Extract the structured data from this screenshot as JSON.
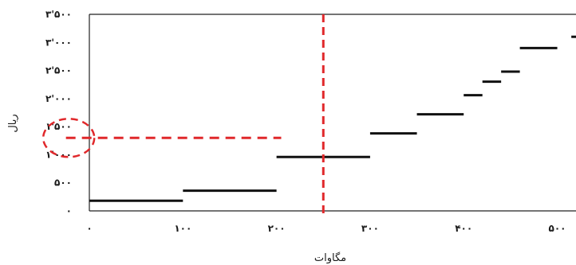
{
  "chart_data": {
    "type": "line",
    "xlabel": "مگاوات",
    "ylabel": "ریال",
    "xlim": [
      0,
      520
    ],
    "ylim": [
      0,
      3500
    ],
    "x_ticks": [
      {
        "value": 0,
        "label": "۰"
      },
      {
        "value": 100,
        "label": "۱۰۰"
      },
      {
        "value": 200,
        "label": "۲۰۰"
      },
      {
        "value": 300,
        "label": "۳۰۰"
      },
      {
        "value": 400,
        "label": "۴۰۰"
      },
      {
        "value": 500,
        "label": "۵۰۰"
      }
    ],
    "y_ticks": [
      {
        "value": 0,
        "label": "۰"
      },
      {
        "value": 500,
        "label": "۵۰۰"
      },
      {
        "value": 1000,
        "label": "۱'۰۰۰"
      },
      {
        "value": 1500,
        "label": "۱'۵۰۰"
      },
      {
        "value": 2000,
        "label": "۲'۰۰۰"
      },
      {
        "value": 2500,
        "label": "۲'۵۰۰"
      },
      {
        "value": 3000,
        "label": "۳'۰۰۰"
      },
      {
        "value": 3500,
        "label": "۳'۵۰۰"
      }
    ],
    "steps": [
      {
        "x0": 0,
        "x1": 100,
        "y": 180
      },
      {
        "x0": 100,
        "x1": 200,
        "y": 360
      },
      {
        "x0": 200,
        "x1": 300,
        "y": 960
      },
      {
        "x0": 300,
        "x1": 350,
        "y": 1380
      },
      {
        "x0": 350,
        "x1": 400,
        "y": 1720
      },
      {
        "x0": 400,
        "x1": 420,
        "y": 2060
      },
      {
        "x0": 420,
        "x1": 440,
        "y": 2300
      },
      {
        "x0": 440,
        "x1": 460,
        "y": 2480
      },
      {
        "x0": 460,
        "x1": 500,
        "y": 2900
      },
      {
        "x0": 515,
        "x1": 540,
        "y": 3100
      }
    ],
    "marker_vertical_x": 250,
    "marker_horizontal": {
      "y": 1300,
      "x0": -25,
      "x1": 205
    },
    "marker_circle": {
      "x": -22,
      "y": 1300
    },
    "colors": {
      "steps": "#111111",
      "marker": "#e0282b",
      "frame": "#222222"
    },
    "grid": false
  }
}
